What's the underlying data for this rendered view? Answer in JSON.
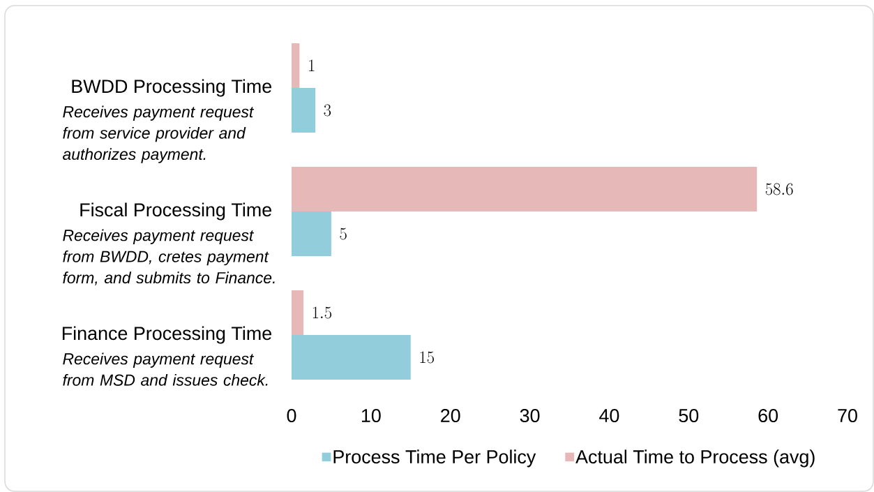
{
  "chart_data": {
    "type": "bar",
    "orientation": "horizontal",
    "categories": [
      "BWDD Processing Time",
      "Fiscal Processing Time",
      "Finance Processing Time"
    ],
    "series": [
      {
        "name": "Process Time Per Policy",
        "color": "#92cddc",
        "values": [
          3,
          5,
          15
        ]
      },
      {
        "name": "Actual Time to Process (avg)",
        "color": "#e6b8b7",
        "values": [
          1,
          58.6,
          1.5
        ]
      }
    ],
    "xlim": [
      0,
      70
    ],
    "xticks": [
      0,
      10,
      20,
      30,
      40,
      50,
      60,
      70
    ],
    "data_labels": true,
    "legend": "bottom",
    "annotations": [
      "Receives payment request from service provider and authorizes payment.",
      "Receives payment request from BWDD, cretes payment form, and submits to Finance.",
      "Receives payment request from MSD and issues check."
    ]
  }
}
